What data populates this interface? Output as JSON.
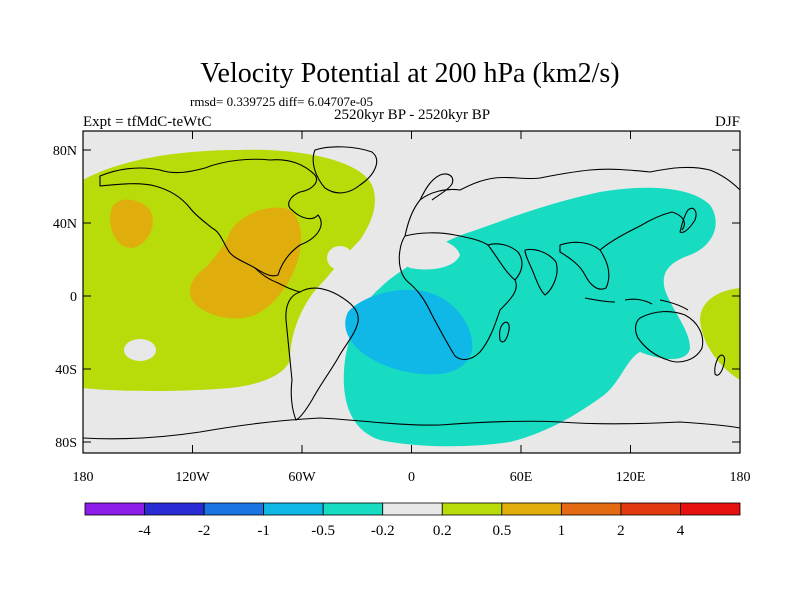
{
  "title": "Velocity Potential at 200 hPa (km2/s)",
  "stats": "rmsd= 0.339725 diff= 6.04707e-05",
  "period": "2520kyr BP - 2520kyr BP",
  "experiment": "Expt = tfMdC-teWtC",
  "season": "DJF",
  "map": {
    "lat_labels": [
      "80N",
      "40N",
      "0",
      "40S",
      "80S"
    ],
    "lon_labels": [
      "180",
      "120W",
      "60W",
      "0",
      "60E",
      "120E",
      "180"
    ]
  },
  "colorbar": {
    "labels": [
      "-4",
      "-2",
      "-1",
      "-0.5",
      "-0.2",
      "0.2",
      "0.5",
      "1",
      "2",
      "4"
    ],
    "colors": [
      "#8c1ce8",
      "#2b2bd6",
      "#1a74e2",
      "#0fb8e6",
      "#17dcc2",
      "#e8e8e8",
      "#b8dc0a",
      "#e0ae0c",
      "#e36a12",
      "#e23a0e",
      "#e6110f"
    ]
  },
  "field_colors": {
    "background": "#e8e8e8",
    "positive_light": "#b8dc0a",
    "positive_mid": "#e0ae0c",
    "negative_light": "#17dcc2",
    "negative_mid": "#0fb8e6"
  }
}
